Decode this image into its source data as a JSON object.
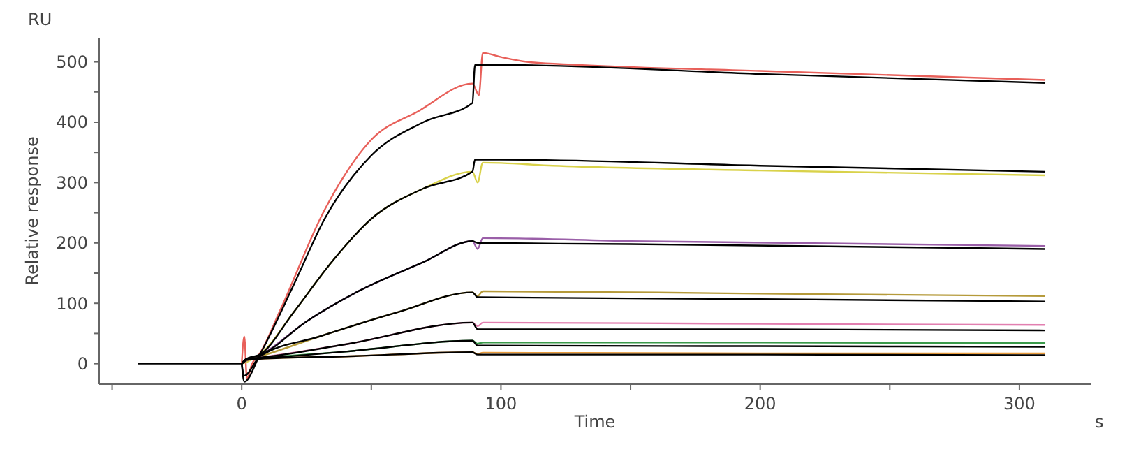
{
  "chart_data": {
    "type": "line",
    "xlabel": "Time",
    "ylabel": "Relative response",
    "annotations": [
      "RU",
      "s"
    ],
    "xlim": [
      -55,
      327.5
    ],
    "ylim": [
      -34,
      540
    ],
    "xticks": [
      {
        "value": -50,
        "label": null
      },
      0,
      {
        "value": 50,
        "label": null
      },
      100,
      {
        "value": 150,
        "label": null
      },
      200,
      {
        "value": 250,
        "label": null
      },
      300
    ],
    "yticks": [
      0,
      {
        "value": 50,
        "label": null
      },
      100,
      {
        "value": 150,
        "label": null
      },
      200,
      {
        "value": 250,
        "label": null
      },
      300,
      {
        "value": 350,
        "label": null
      },
      400,
      {
        "value": 450,
        "label": null
      },
      500
    ],
    "grid": false,
    "marker": "none",
    "line_style": "solid",
    "series": [
      {
        "color": "#e8605a",
        "x": [
          0,
          1,
          2,
          4,
          7,
          15,
          32,
          50,
          68,
          89,
          91.5,
          93,
          100,
          110,
          130,
          200,
          310
        ],
        "values": [
          0,
          45,
          -25,
          0,
          17,
          90,
          255,
          371,
          418,
          464,
          445,
          515,
          508,
          500,
          495,
          485,
          470
        ]
      },
      {
        "color": "#d9d24a",
        "x": [
          0,
          2,
          7,
          20,
          35,
          50,
          70,
          89,
          91,
          93,
          120,
          200,
          310
        ],
        "values": [
          0,
          3,
          15,
          85,
          170,
          240,
          290,
          318,
          300,
          333,
          328,
          320,
          312
        ]
      },
      {
        "color": "#9a5fa8",
        "x": [
          0,
          2,
          7,
          25,
          45,
          70,
          89,
          91,
          93,
          150,
          310
        ],
        "values": [
          0,
          5,
          14,
          70,
          120,
          168,
          203,
          190,
          208,
          203,
          195
        ]
      },
      {
        "color": "#b59a3a",
        "x": [
          0,
          2,
          7,
          30,
          60,
          89,
          91,
          93,
          200,
          310
        ],
        "values": [
          0,
          6,
          12,
          45,
          85,
          118,
          112,
          120,
          116,
          112
        ]
      },
      {
        "color": "#e27fb0",
        "x": [
          0,
          2,
          7,
          40,
          89,
          91,
          93,
          200,
          310
        ],
        "values": [
          0,
          7,
          10,
          32,
          68,
          62,
          68,
          66,
          64
        ]
      },
      {
        "color": "#3a9a4a",
        "x": [
          0,
          2,
          7,
          40,
          89,
          91,
          93,
          200,
          310
        ],
        "values": [
          0,
          7,
          9,
          20,
          38,
          33,
          35,
          35,
          34
        ]
      },
      {
        "color": "#e89a3a",
        "x": [
          0,
          2,
          7,
          40,
          89,
          91,
          93,
          200,
          310
        ],
        "values": [
          0,
          6,
          8,
          12,
          19,
          16,
          18,
          17,
          17
        ]
      },
      {
        "color": "#000000",
        "x": [
          0,
          1,
          7,
          20,
          32,
          50,
          70,
          89,
          90,
          100,
          200,
          310
        ],
        "values": [
          0,
          -30,
          15,
          130,
          240,
          345,
          400,
          432,
          495,
          495,
          480,
          465
        ]
      },
      {
        "color": "#000000",
        "x": [
          -40,
          0,
          2,
          7,
          20,
          35,
          50,
          70,
          89,
          90,
          100,
          200,
          310
        ],
        "values": [
          0,
          0,
          8,
          15,
          85,
          170,
          240,
          290,
          318,
          338,
          338,
          328,
          318
        ]
      },
      {
        "color": "#000000",
        "x": [
          0,
          2,
          7,
          25,
          45,
          70,
          89,
          91,
          150,
          310
        ],
        "values": [
          0,
          8,
          14,
          70,
          120,
          168,
          203,
          200,
          198,
          190
        ]
      },
      {
        "color": "#000000",
        "x": [
          0,
          1,
          7,
          30,
          60,
          89,
          91,
          200,
          310
        ],
        "values": [
          0,
          -20,
          12,
          45,
          85,
          118,
          110,
          107,
          103
        ]
      },
      {
        "color": "#000000",
        "x": [
          0,
          2,
          7,
          40,
          89,
          91,
          200,
          310
        ],
        "values": [
          0,
          8,
          10,
          32,
          68,
          57,
          57,
          55
        ]
      },
      {
        "color": "#000000",
        "x": [
          0,
          2,
          7,
          40,
          89,
          91,
          200,
          310
        ],
        "values": [
          0,
          8,
          9,
          20,
          38,
          30,
          29,
          28
        ]
      },
      {
        "color": "#000000",
        "x": [
          0,
          2,
          7,
          40,
          89,
          91,
          200,
          310
        ],
        "values": [
          0,
          6,
          8,
          12,
          19,
          15,
          15,
          14
        ]
      }
    ]
  }
}
